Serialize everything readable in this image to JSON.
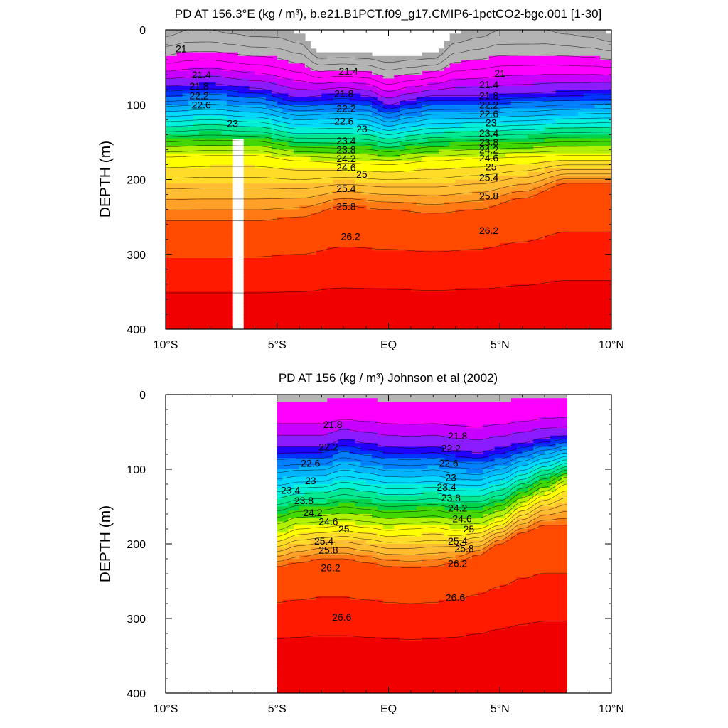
{
  "chart_data": [
    {
      "type": "contour",
      "title": "PD AT 156.3°E (kg / m³), b.e21.B1PCT.f09_g17.CMIP6-1pctCO2-bgc.001 [1-30]",
      "ylabel": "DEPTH (m)",
      "xlabel": "",
      "x_ticks": [
        "10°S",
        "5°S",
        "EQ",
        "5°N",
        "10°N"
      ],
      "x_range": [
        -10,
        10
      ],
      "y_ticks": [
        "0",
        "100",
        "200",
        "300",
        "400"
      ],
      "y_range": [
        0,
        400
      ],
      "y_reversed": true,
      "contour_levels": [
        21,
        21.2,
        21.4,
        21.6,
        21.8,
        22,
        22.2,
        22.4,
        22.6,
        22.8,
        23,
        23.2,
        23.4,
        23.6,
        23.8,
        24,
        24.2,
        24.4,
        24.6,
        24.8,
        25,
        25.2,
        25.4,
        25.6,
        25.8,
        26,
        26.2,
        26.4,
        26.6
      ],
      "surface_profile": {
        "lat": [
          -10,
          -9,
          -8,
          -7,
          -6,
          -5,
          -4,
          -3,
          -2,
          -1,
          0,
          1,
          2,
          3,
          4,
          5,
          6,
          7,
          8,
          9,
          10
        ],
        "density": [
          20.9,
          21.0,
          21.0,
          20.95,
          20.9,
          20.9,
          20.8,
          20.3,
          20.3,
          20.3,
          20.3,
          20.3,
          20.3,
          20.8,
          20.9,
          21.0,
          21.0,
          21.0,
          20.95,
          20.9,
          20.8
        ]
      },
      "labeled_contours": [
        {
          "value": "21",
          "lat": -9.3,
          "depth": 25
        },
        {
          "value": "21.4",
          "lat": -8.4,
          "depth": 60
        },
        {
          "value": "21.8",
          "lat": -8.5,
          "depth": 75
        },
        {
          "value": "22.2",
          "lat": -8.5,
          "depth": 88
        },
        {
          "value": "22.6",
          "lat": -8.4,
          "depth": 100
        },
        {
          "value": "23",
          "lat": -7.0,
          "depth": 125
        },
        {
          "value": "21.4",
          "lat": -1.8,
          "depth": 55
        },
        {
          "value": "21.8",
          "lat": -2.0,
          "depth": 85
        },
        {
          "value": "22.2",
          "lat": -1.9,
          "depth": 105
        },
        {
          "value": "22.6",
          "lat": -2.0,
          "depth": 122
        },
        {
          "value": "23",
          "lat": -1.2,
          "depth": 132
        },
        {
          "value": "23.4",
          "lat": -1.9,
          "depth": 148
        },
        {
          "value": "23.8",
          "lat": -1.9,
          "depth": 160
        },
        {
          "value": "24.2",
          "lat": -1.9,
          "depth": 172
        },
        {
          "value": "24.6",
          "lat": -1.9,
          "depth": 184
        },
        {
          "value": "25",
          "lat": -1.2,
          "depth": 193
        },
        {
          "value": "25.4",
          "lat": -1.9,
          "depth": 212
        },
        {
          "value": "25.8",
          "lat": -1.9,
          "depth": 236
        },
        {
          "value": "26.2",
          "lat": -1.7,
          "depth": 276
        },
        {
          "value": "21",
          "lat": 5.0,
          "depth": 58
        },
        {
          "value": "21.4",
          "lat": 4.5,
          "depth": 73
        },
        {
          "value": "21.8",
          "lat": 4.5,
          "depth": 88
        },
        {
          "value": "22.2",
          "lat": 4.5,
          "depth": 100
        },
        {
          "value": "22.6",
          "lat": 4.5,
          "depth": 112
        },
        {
          "value": "23",
          "lat": 4.6,
          "depth": 124
        },
        {
          "value": "23.4",
          "lat": 4.5,
          "depth": 138
        },
        {
          "value": "23.8",
          "lat": 4.5,
          "depth": 150
        },
        {
          "value": "24.2",
          "lat": 4.5,
          "depth": 160
        },
        {
          "value": "24.6",
          "lat": 4.5,
          "depth": 171
        },
        {
          "value": "25",
          "lat": 4.6,
          "depth": 183
        },
        {
          "value": "25.4",
          "lat": 4.5,
          "depth": 197
        },
        {
          "value": "25.8",
          "lat": 4.5,
          "depth": 222
        },
        {
          "value": "26.2",
          "lat": 4.5,
          "depth": 268
        }
      ],
      "missing_column_lat": [
        -7.0,
        -6.5
      ]
    },
    {
      "type": "contour",
      "title": "PD AT 156 (kg / m³) Johnson et al (2002)",
      "ylabel": "DEPTH (m)",
      "xlabel": "",
      "x_ticks": [
        "10°S",
        "5°S",
        "EQ",
        "5°N",
        "10°N"
      ],
      "x_range": [
        -10,
        10
      ],
      "y_ticks": [
        "0",
        "100",
        "200",
        "300",
        "400"
      ],
      "y_range": [
        0,
        400
      ],
      "y_reversed": true,
      "data_lat_range": [
        -5,
        8
      ],
      "contour_levels": [
        21.8,
        22,
        22.2,
        22.4,
        22.6,
        22.8,
        23,
        23.2,
        23.4,
        23.6,
        23.8,
        24,
        24.2,
        24.4,
        24.6,
        24.8,
        25,
        25.2,
        25.4,
        25.6,
        25.8,
        26,
        26.2,
        26.4,
        26.6
      ],
      "labeled_contours": [
        {
          "value": "21.8",
          "lat": -2.5,
          "depth": 40
        },
        {
          "value": "22.2",
          "lat": -2.7,
          "depth": 70
        },
        {
          "value": "22.6",
          "lat": -3.5,
          "depth": 92
        },
        {
          "value": "23",
          "lat": -3.5,
          "depth": 115
        },
        {
          "value": "23.4",
          "lat": -4.4,
          "depth": 128
        },
        {
          "value": "23.8",
          "lat": -3.8,
          "depth": 142
        },
        {
          "value": "24.2",
          "lat": -3.4,
          "depth": 158
        },
        {
          "value": "24.6",
          "lat": -2.7,
          "depth": 170
        },
        {
          "value": "25",
          "lat": -2.0,
          "depth": 180
        },
        {
          "value": "25.4",
          "lat": -2.9,
          "depth": 196
        },
        {
          "value": "25.8",
          "lat": -2.7,
          "depth": 208
        },
        {
          "value": "26.2",
          "lat": -2.6,
          "depth": 232
        },
        {
          "value": "26.6",
          "lat": -2.1,
          "depth": 298
        },
        {
          "value": "21.8",
          "lat": 3.1,
          "depth": 55
        },
        {
          "value": "22.2",
          "lat": 2.8,
          "depth": 72
        },
        {
          "value": "22.6",
          "lat": 2.7,
          "depth": 92
        },
        {
          "value": "23",
          "lat": 2.8,
          "depth": 111
        },
        {
          "value": "23.4",
          "lat": 2.6,
          "depth": 124
        },
        {
          "value": "23.8",
          "lat": 2.8,
          "depth": 138
        },
        {
          "value": "24.2",
          "lat": 3.1,
          "depth": 152
        },
        {
          "value": "24.6",
          "lat": 3.3,
          "depth": 166
        },
        {
          "value": "25",
          "lat": 3.6,
          "depth": 180
        },
        {
          "value": "25.4",
          "lat": 3.1,
          "depth": 196
        },
        {
          "value": "25.8",
          "lat": 3.4,
          "depth": 206
        },
        {
          "value": "26.2",
          "lat": 3.1,
          "depth": 226
        },
        {
          "value": "26.6",
          "lat": 3.0,
          "depth": 272
        }
      ]
    }
  ]
}
